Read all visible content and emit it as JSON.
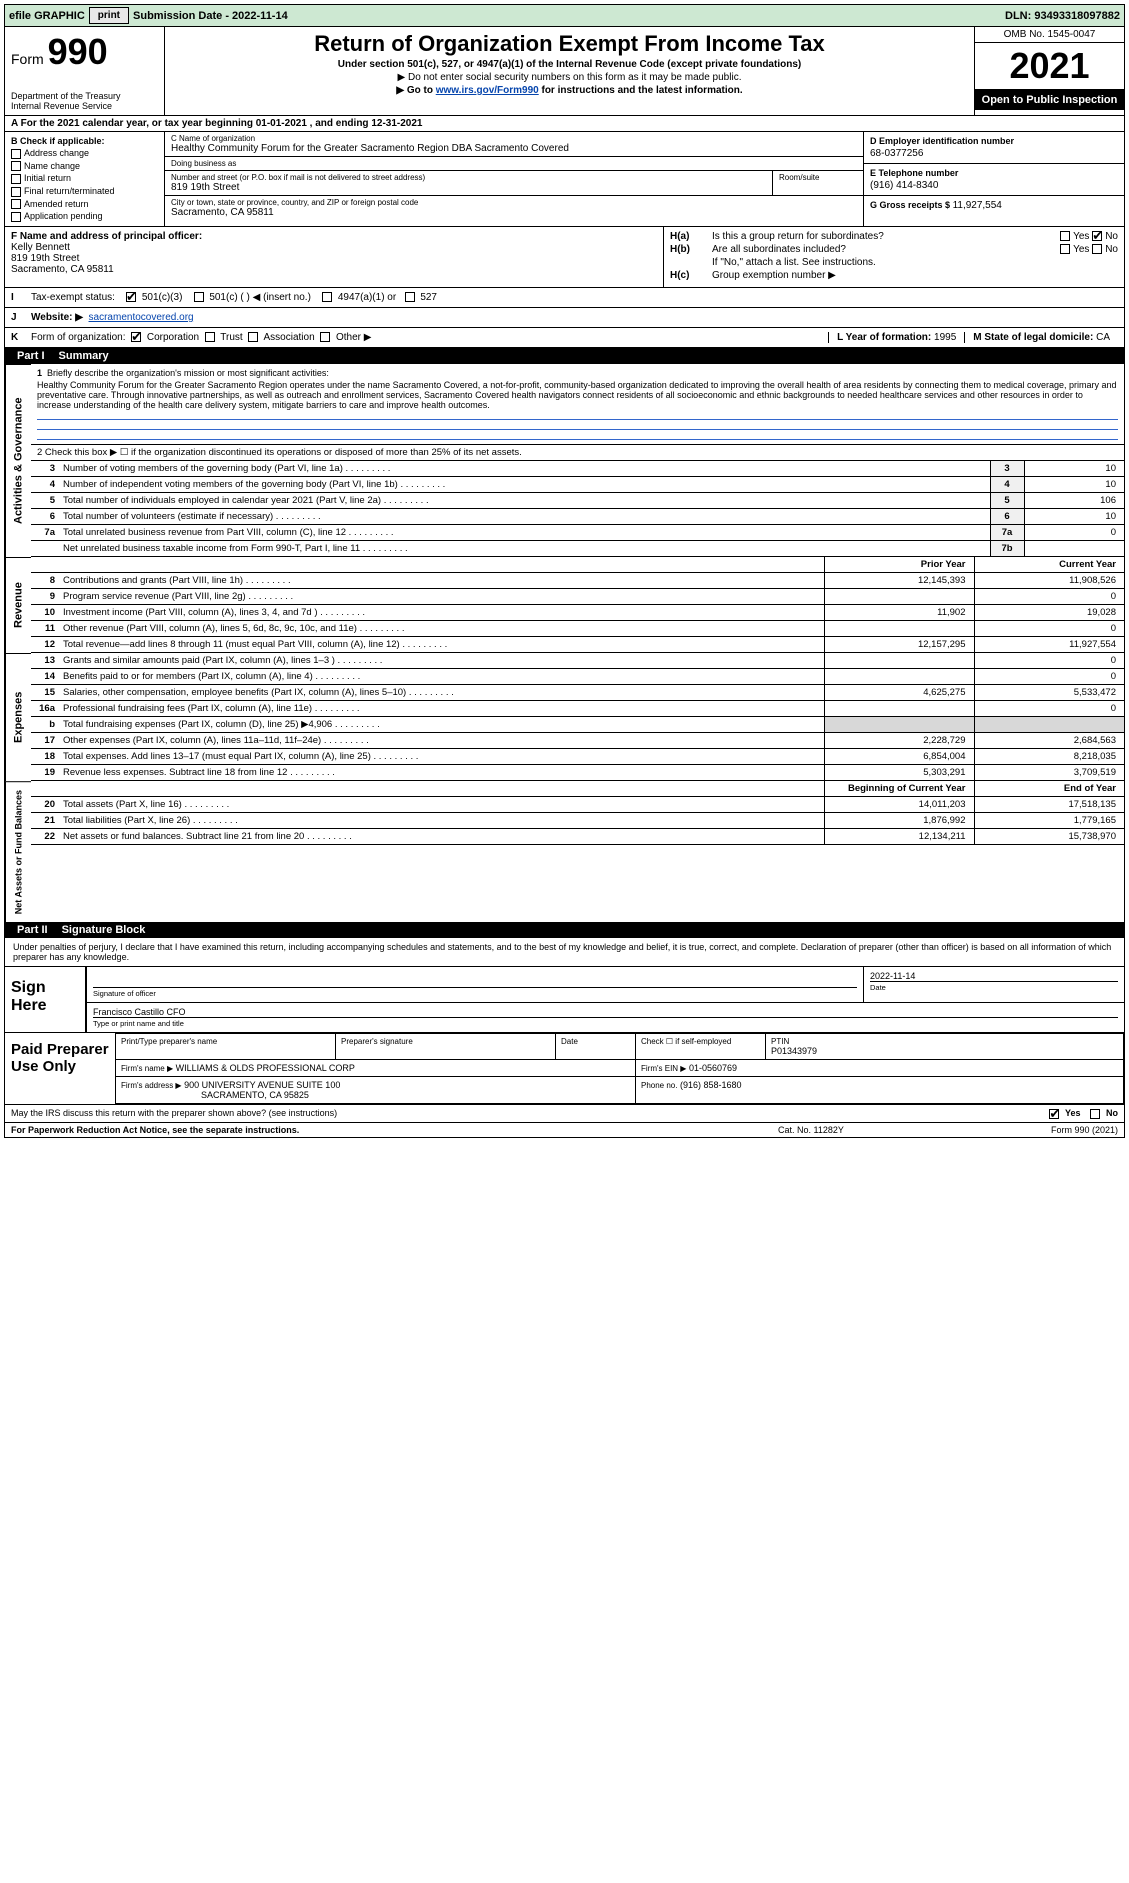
{
  "topbar": {
    "efile": "efile GRAPHIC",
    "print_btn": "print",
    "submission_label": "Submission Date - ",
    "submission_date": "2022-11-14",
    "dln": "DLN: 93493318097882"
  },
  "header": {
    "form_prefix": "Form",
    "form_number": "990",
    "dept": "Department of the Treasury",
    "irs": "Internal Revenue Service",
    "title": "Return of Organization Exempt From Income Tax",
    "sub1": "Under section 501(c), 527, or 4947(a)(1) of the Internal Revenue Code (except private foundations)",
    "sub2": "▶ Do not enter social security numbers on this form as it may be made public.",
    "sub3_pre": "▶ Go to ",
    "sub3_link": "www.irs.gov/Form990",
    "sub3_post": " for instructions and the latest information.",
    "omb": "OMB No. 1545-0047",
    "year": "2021",
    "open_public": "Open to Public Inspection"
  },
  "row_a": "A For the 2021 calendar year, or tax year beginning 01-01-2021   , and ending 12-31-2021",
  "block_b": {
    "hdr": "B Check if applicable:",
    "opts": [
      "Address change",
      "Name change",
      "Initial return",
      "Final return/terminated",
      "Amended return",
      "Application pending"
    ],
    "c_lab": "C Name of organization",
    "c_name": "Healthy Community Forum for the Greater Sacramento Region DBA Sacramento Covered",
    "dba_lab": "Doing business as",
    "dba": "",
    "addr_lab": "Number and street (or P.O. box if mail is not delivered to street address)",
    "addr": "819 19th Street",
    "room_lab": "Room/suite",
    "room": "",
    "city_lab": "City or town, state or province, country, and ZIP or foreign postal code",
    "city": "Sacramento, CA  95811",
    "d_lab": "D Employer identification number",
    "d_val": "68-0377256",
    "e_lab": "E Telephone number",
    "e_val": "(916) 414-8340",
    "g_lab": "G Gross receipts $",
    "g_val": "11,927,554"
  },
  "block_f": {
    "f_lab": "F  Name and address of principal officer:",
    "f_name": "Kelly Bennett",
    "f_addr1": "819 19th Street",
    "f_addr2": "Sacramento, CA  95811"
  },
  "block_h": {
    "ha_lab": "H(a)",
    "ha_text": "Is this a group return for subordinates?",
    "ha_yes": "Yes",
    "ha_no": "No",
    "hb_lab": "H(b)",
    "hb_text": "Are all subordinates included?",
    "hb_note": "If \"No,\" attach a list. See instructions.",
    "hc_lab": "H(c)",
    "hc_text": "Group exemption number ▶"
  },
  "row_i": {
    "lab": "I",
    "text": "Tax-exempt status:",
    "opts": [
      "501(c)(3)",
      "501(c) (  ) ◀ (insert no.)",
      "4947(a)(1) or",
      "527"
    ]
  },
  "row_j": {
    "lab": "J",
    "text": "Website: ▶",
    "link": "sacramentocovered.org"
  },
  "row_k": {
    "lab": "K",
    "text": "Form of organization:",
    "opts": [
      "Corporation",
      "Trust",
      "Association",
      "Other ▶"
    ],
    "l_lab": "L Year of formation:",
    "l_val": "1995",
    "m_lab": "M State of legal domicile:",
    "m_val": "CA"
  },
  "part1": {
    "hdr": "Part I",
    "title": "Summary",
    "side_gov": "Activities & Governance",
    "side_rev": "Revenue",
    "side_exp": "Expenses",
    "side_net": "Net Assets or Fund Balances",
    "q1_lab": "1",
    "q1_text": "Briefly describe the organization's mission or most significant activities:",
    "q1_ans": "Healthy Community Forum for the Greater Sacramento Region operates under the name Sacramento Covered, a not-for-profit, community-based organization dedicated to improving the overall health of area residents by connecting them to medical coverage, primary and preventative care. Through innovative partnerships, as well as outreach and enrollment services, Sacramento Covered health navigators connect residents of all socioeconomic and ethnic backgrounds to needed healthcare services and other resources in order to increase understanding of the health care delivery system, mitigate barriers to care and improve health outcomes.",
    "q2": "2  Check this box ▶ ☐  if the organization discontinued its operations or disposed of more than 25% of its net assets.",
    "lines_gov": [
      {
        "n": "3",
        "d": "Number of voting members of the governing body (Part VI, line 1a)",
        "box": "3",
        "v": "10"
      },
      {
        "n": "4",
        "d": "Number of independent voting members of the governing body (Part VI, line 1b)",
        "box": "4",
        "v": "10"
      },
      {
        "n": "5",
        "d": "Total number of individuals employed in calendar year 2021 (Part V, line 2a)",
        "box": "5",
        "v": "106"
      },
      {
        "n": "6",
        "d": "Total number of volunteers (estimate if necessary)",
        "box": "6",
        "v": "10"
      },
      {
        "n": "7a",
        "d": "Total unrelated business revenue from Part VIII, column (C), line 12",
        "box": "7a",
        "v": "0"
      },
      {
        "n": "",
        "d": "Net unrelated business taxable income from Form 990-T, Part I, line 11",
        "box": "7b",
        "v": ""
      }
    ],
    "year_prior": "Prior Year",
    "year_curr": "Current Year",
    "lines_rev": [
      {
        "n": "8",
        "d": "Contributions and grants (Part VIII, line 1h)",
        "p": "12,145,393",
        "c": "11,908,526"
      },
      {
        "n": "9",
        "d": "Program service revenue (Part VIII, line 2g)",
        "p": "",
        "c": "0"
      },
      {
        "n": "10",
        "d": "Investment income (Part VIII, column (A), lines 3, 4, and 7d )",
        "p": "11,902",
        "c": "19,028"
      },
      {
        "n": "11",
        "d": "Other revenue (Part VIII, column (A), lines 5, 6d, 8c, 9c, 10c, and 11e)",
        "p": "",
        "c": "0"
      },
      {
        "n": "12",
        "d": "Total revenue—add lines 8 through 11 (must equal Part VIII, column (A), line 12)",
        "p": "12,157,295",
        "c": "11,927,554"
      }
    ],
    "lines_exp": [
      {
        "n": "13",
        "d": "Grants and similar amounts paid (Part IX, column (A), lines 1–3 )",
        "p": "",
        "c": "0"
      },
      {
        "n": "14",
        "d": "Benefits paid to or for members (Part IX, column (A), line 4)",
        "p": "",
        "c": "0"
      },
      {
        "n": "15",
        "d": "Salaries, other compensation, employee benefits (Part IX, column (A), lines 5–10)",
        "p": "4,625,275",
        "c": "5,533,472"
      },
      {
        "n": "16a",
        "d": "Professional fundraising fees (Part IX, column (A), line 11e)",
        "p": "",
        "c": "0"
      },
      {
        "n": "b",
        "d": "Total fundraising expenses (Part IX, column (D), line 25) ▶4,906",
        "p": "",
        "c": "",
        "shade": true
      },
      {
        "n": "17",
        "d": "Other expenses (Part IX, column (A), lines 11a–11d, 11f–24e)",
        "p": "2,228,729",
        "c": "2,684,563"
      },
      {
        "n": "18",
        "d": "Total expenses. Add lines 13–17 (must equal Part IX, column (A), line 25)",
        "p": "6,854,004",
        "c": "8,218,035"
      },
      {
        "n": "19",
        "d": "Revenue less expenses. Subtract line 18 from line 12",
        "p": "5,303,291",
        "c": "3,709,519"
      }
    ],
    "net_begin": "Beginning of Current Year",
    "net_end": "End of Year",
    "lines_net": [
      {
        "n": "20",
        "d": "Total assets (Part X, line 16)",
        "p": "14,011,203",
        "c": "17,518,135"
      },
      {
        "n": "21",
        "d": "Total liabilities (Part X, line 26)",
        "p": "1,876,992",
        "c": "1,779,165"
      },
      {
        "n": "22",
        "d": "Net assets or fund balances. Subtract line 21 from line 20",
        "p": "12,134,211",
        "c": "15,738,970"
      }
    ]
  },
  "part2": {
    "hdr": "Part II",
    "title": "Signature Block",
    "intro": "Under penalties of perjury, I declare that I have examined this return, including accompanying schedules and statements, and to the best of my knowledge and belief, it is true, correct, and complete. Declaration of preparer (other than officer) is based on all information of which preparer has any knowledge.",
    "sign_here": "Sign Here",
    "sig_officer_lab": "Signature of officer",
    "date_lab": "Date",
    "date_val": "2022-11-14",
    "officer_name": "Francisco Castillo  CFO",
    "officer_name_lab": "Type or print name and title",
    "paid_prep": "Paid Preparer Use Only",
    "prep_name_lab": "Print/Type preparer's name",
    "prep_sig_lab": "Preparer's signature",
    "prep_date_lab": "Date",
    "prep_check_lab": "Check ☐ if self-employed",
    "ptin_lab": "PTIN",
    "ptin_val": "P01343979",
    "firm_name_lab": "Firm's name    ▶",
    "firm_name": "WILLIAMS & OLDS PROFESSIONAL CORP",
    "firm_ein_lab": "Firm's EIN ▶",
    "firm_ein": "01-0560769",
    "firm_addr_lab": "Firm's address ▶",
    "firm_addr1": "900 UNIVERSITY AVENUE SUITE 100",
    "firm_addr2": "SACRAMENTO, CA  95825",
    "phone_lab": "Phone no.",
    "phone_val": "(916) 858-1680"
  },
  "footer": {
    "discuss": "May the IRS discuss this return with the preparer shown above? (see instructions)",
    "yes": "Yes",
    "no": "No",
    "pra": "For Paperwork Reduction Act Notice, see the separate instructions.",
    "cat": "Cat. No. 11282Y",
    "form": "Form 990 (2021)"
  },
  "colors": {
    "topbar_bg": "#cde8d2",
    "link": "#0645ad",
    "shade": "#d8d8d8",
    "blueline": "#3366cc"
  }
}
